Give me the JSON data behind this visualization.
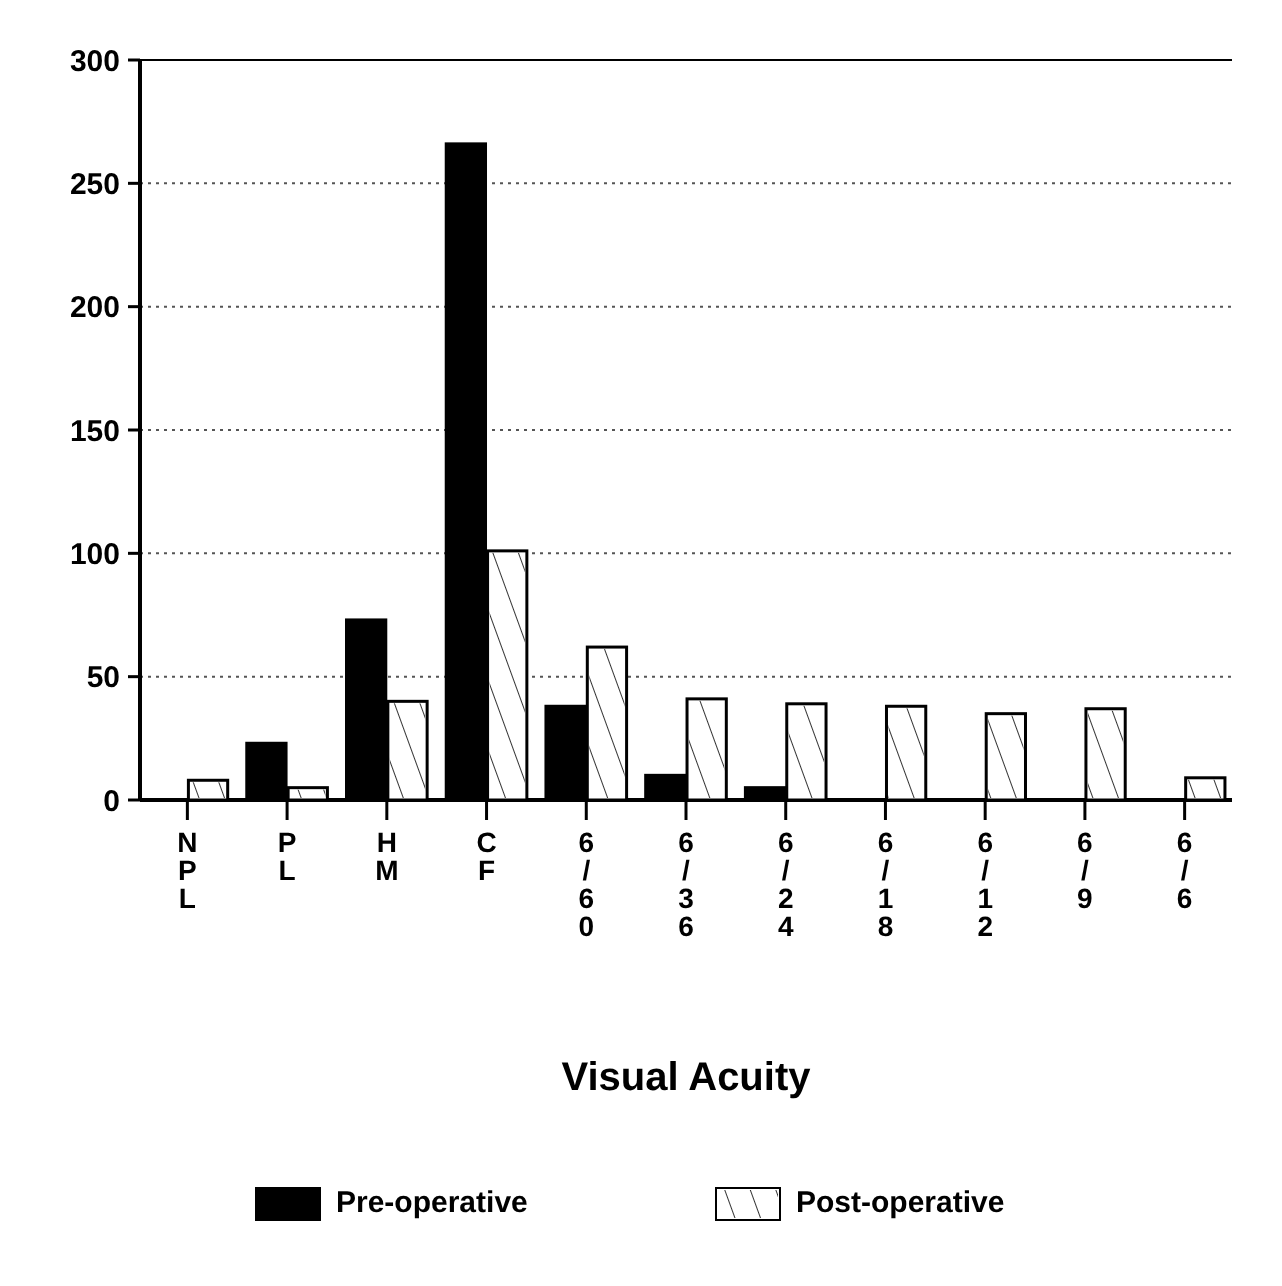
{
  "chart_data": {
    "type": "bar",
    "xlabel": "Visual Acuity",
    "categories": [
      "NPL",
      "PL",
      "HM",
      "CF",
      "6/60",
      "6/36",
      "6/24",
      "6/18",
      "6/12",
      "6/9",
      "6/6"
    ],
    "series": [
      {
        "name": "Pre-operative",
        "color": "#000000",
        "values": [
          0,
          23,
          73,
          266,
          38,
          10,
          5,
          0,
          0,
          0,
          0
        ]
      },
      {
        "name": "Post-operative",
        "color": "#ffffff",
        "values": [
          8,
          5,
          40,
          101,
          62,
          41,
          39,
          38,
          35,
          37,
          9
        ]
      }
    ],
    "ylim": [
      0,
      300
    ],
    "yticks": [
      0,
      50,
      100,
      150,
      200,
      250,
      300
    ],
    "grid": "y",
    "legend": "bottom"
  }
}
